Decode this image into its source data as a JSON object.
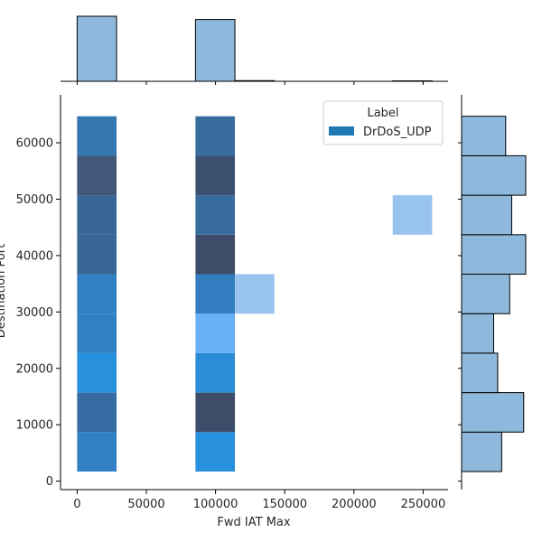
{
  "chart_data": {
    "type": "heatmap",
    "xlabel": "Fwd IAT Max",
    "ylabel": "Destination Port",
    "xlim": [
      -12000,
      268000
    ],
    "ylim": [
      -1500,
      68500
    ],
    "x_ticks": [
      0,
      50000,
      100000,
      150000,
      200000,
      250000
    ],
    "y_ticks": [
      0,
      10000,
      20000,
      30000,
      40000,
      50000,
      60000
    ],
    "x_bins": [
      0,
      28500,
      57000,
      85500,
      114000,
      142500,
      171000,
      199500,
      228000,
      256500
    ],
    "y_bins": [
      1700,
      8700,
      15700,
      22700,
      29700,
      36700,
      43700,
      50700,
      57700,
      64700
    ],
    "heat_cells": [
      {
        "xbin": 0,
        "ybin": 0,
        "intensity": 0.55
      },
      {
        "xbin": 0,
        "ybin": 1,
        "intensity": 0.65
      },
      {
        "xbin": 0,
        "ybin": 2,
        "intensity": 0.45
      },
      {
        "xbin": 0,
        "ybin": 3,
        "intensity": 0.55
      },
      {
        "xbin": 0,
        "ybin": 4,
        "intensity": 0.55
      },
      {
        "xbin": 0,
        "ybin": 5,
        "intensity": 0.7
      },
      {
        "xbin": 0,
        "ybin": 6,
        "intensity": 0.7
      },
      {
        "xbin": 0,
        "ybin": 7,
        "intensity": 0.85
      },
      {
        "xbin": 0,
        "ybin": 8,
        "intensity": 0.62
      },
      {
        "xbin": 3,
        "ybin": 0,
        "intensity": 0.45
      },
      {
        "xbin": 3,
        "ybin": 1,
        "intensity": 0.95
      },
      {
        "xbin": 3,
        "ybin": 2,
        "intensity": 0.5
      },
      {
        "xbin": 3,
        "ybin": 3,
        "intensity": 0.3
      },
      {
        "xbin": 3,
        "ybin": 4,
        "intensity": 0.6
      },
      {
        "xbin": 3,
        "ybin": 5,
        "intensity": 0.95
      },
      {
        "xbin": 3,
        "ybin": 6,
        "intensity": 0.48
      },
      {
        "xbin": 3,
        "ybin": 7,
        "intensity": 0.75
      },
      {
        "xbin": 3,
        "ybin": 8,
        "intensity": 0.48
      },
      {
        "xbin": 4,
        "ybin": 4,
        "intensity": 0.15
      },
      {
        "xbin": 8,
        "ybin": 6,
        "intensity": 0.15
      }
    ],
    "marginal_x": {
      "bins": [
        0,
        28500,
        57000,
        85500,
        114000,
        142500,
        171000,
        199500,
        228000,
        256500
      ],
      "counts": [
        100,
        0,
        0,
        95,
        1,
        0,
        0,
        0,
        0.7
      ],
      "max_count": 100
    },
    "marginal_y": {
      "bins": [
        1700,
        8700,
        15700,
        22700,
        29700,
        36700,
        43700,
        50700,
        57700,
        64700
      ],
      "counts": [
        20,
        31,
        18,
        16,
        24,
        32,
        25,
        32,
        22
      ],
      "max_count": 32
    },
    "legend": {
      "title": "Label",
      "entries": [
        {
          "name": "DrDoS_UDP",
          "color": "#1f77b4"
        }
      ],
      "placement": "top-right"
    },
    "colors": {
      "base": "#1f77b4",
      "hist_fill": "#8fb9dc",
      "hist_edge": "#000000"
    }
  }
}
